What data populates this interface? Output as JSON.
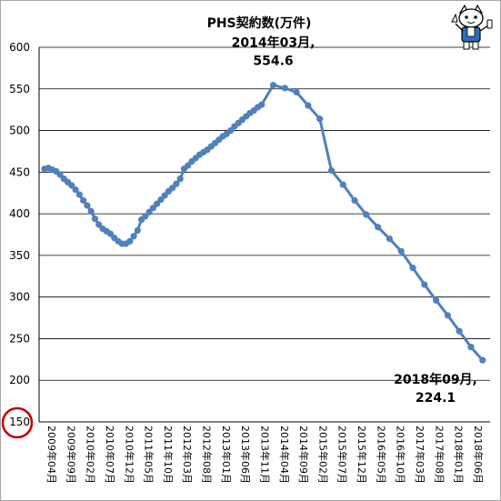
{
  "chart_data": {
    "type": "line",
    "title": "PHS契約数(万件)",
    "xlabel": "",
    "ylabel": "",
    "ylim": [
      150,
      600
    ],
    "ytick_values": [
      150,
      200,
      250,
      300,
      350,
      400,
      450,
      500,
      550,
      600
    ],
    "ytick_labels": [
      "150",
      "200",
      "250",
      "300",
      "350",
      "400",
      "450",
      "500",
      "550",
      "600"
    ],
    "grid": "horizontal",
    "legend": "none",
    "series_color": "#4f81bd",
    "highlight_color": "#c00000",
    "highlighted_tick": "150",
    "x_start": "2009-04",
    "x_labels": [
      {
        "month": "2009-04",
        "text": "2009年04月"
      },
      {
        "month": "2009-09",
        "text": "2009年09月"
      },
      {
        "month": "2010-02",
        "text": "2010年02月"
      },
      {
        "month": "2010-07",
        "text": "2010年07月"
      },
      {
        "month": "2010-12",
        "text": "2010年12月"
      },
      {
        "month": "2011-05",
        "text": "2011年05月"
      },
      {
        "month": "2011-10",
        "text": "2011年10月"
      },
      {
        "month": "2012-03",
        "text": "2012年03月"
      },
      {
        "month": "2012-08",
        "text": "2012年08月"
      },
      {
        "month": "2013-01",
        "text": "2013年01月"
      },
      {
        "month": "2013-06",
        "text": "2013年06月"
      },
      {
        "month": "2013-11",
        "text": "2013年11月"
      },
      {
        "month": "2014-04",
        "text": "2014年04月"
      },
      {
        "month": "2014-09",
        "text": "2014年09月"
      },
      {
        "month": "2015-02",
        "text": "2015年02月"
      },
      {
        "month": "2015-07",
        "text": "2015年07月"
      },
      {
        "month": "2015-12",
        "text": "2015年12月"
      },
      {
        "month": "2016-05",
        "text": "2016年05月"
      },
      {
        "month": "2016-10",
        "text": "2016年10月"
      },
      {
        "month": "2017-03",
        "text": "2017年03月"
      },
      {
        "month": "2017-08",
        "text": "2017年08月"
      },
      {
        "month": "2018-01",
        "text": "2018年01月"
      },
      {
        "month": "2018-06",
        "text": "2018年06月"
      }
    ],
    "series": [
      {
        "points": [
          {
            "x": "2009-04",
            "y": 454
          },
          {
            "x": "2009-05",
            "y": 455
          },
          {
            "x": "2009-06",
            "y": 453
          },
          {
            "x": "2009-07",
            "y": 451
          },
          {
            "x": "2009-08",
            "y": 447
          },
          {
            "x": "2009-09",
            "y": 442
          },
          {
            "x": "2009-10",
            "y": 438
          },
          {
            "x": "2009-11",
            "y": 434
          },
          {
            "x": "2009-12",
            "y": 429
          },
          {
            "x": "2010-01",
            "y": 423
          },
          {
            "x": "2010-02",
            "y": 416
          },
          {
            "x": "2010-03",
            "y": 410
          },
          {
            "x": "2010-04",
            "y": 403
          },
          {
            "x": "2010-05",
            "y": 394
          },
          {
            "x": "2010-06",
            "y": 387
          },
          {
            "x": "2010-07",
            "y": 382
          },
          {
            "x": "2010-08",
            "y": 379
          },
          {
            "x": "2010-09",
            "y": 376
          },
          {
            "x": "2010-10",
            "y": 371
          },
          {
            "x": "2010-11",
            "y": 367
          },
          {
            "x": "2010-12",
            "y": 364
          },
          {
            "x": "2011-01",
            "y": 364
          },
          {
            "x": "2011-02",
            "y": 367
          },
          {
            "x": "2011-03",
            "y": 373
          },
          {
            "x": "2011-04",
            "y": 380
          },
          {
            "x": "2011-05",
            "y": 393
          },
          {
            "x": "2011-06",
            "y": 397
          },
          {
            "x": "2011-07",
            "y": 402
          },
          {
            "x": "2011-08",
            "y": 407
          },
          {
            "x": "2011-09",
            "y": 412
          },
          {
            "x": "2011-10",
            "y": 417
          },
          {
            "x": "2011-11",
            "y": 422
          },
          {
            "x": "2011-12",
            "y": 427
          },
          {
            "x": "2012-01",
            "y": 431
          },
          {
            "x": "2012-02",
            "y": 436
          },
          {
            "x": "2012-03",
            "y": 442
          },
          {
            "x": "2012-04",
            "y": 454
          },
          {
            "x": "2012-05",
            "y": 458
          },
          {
            "x": "2012-06",
            "y": 463
          },
          {
            "x": "2012-07",
            "y": 467
          },
          {
            "x": "2012-08",
            "y": 471
          },
          {
            "x": "2012-09",
            "y": 474
          },
          {
            "x": "2012-10",
            "y": 477
          },
          {
            "x": "2012-11",
            "y": 481
          },
          {
            "x": "2012-12",
            "y": 485
          },
          {
            "x": "2013-01",
            "y": 489
          },
          {
            "x": "2013-02",
            "y": 493
          },
          {
            "x": "2013-03",
            "y": 496
          },
          {
            "x": "2013-04",
            "y": 500
          },
          {
            "x": "2013-05",
            "y": 505
          },
          {
            "x": "2013-06",
            "y": 509
          },
          {
            "x": "2013-07",
            "y": 513
          },
          {
            "x": "2013-08",
            "y": 517
          },
          {
            "x": "2013-09",
            "y": 521
          },
          {
            "x": "2013-10",
            "y": 524
          },
          {
            "x": "2013-11",
            "y": 528
          },
          {
            "x": "2013-12",
            "y": 531
          },
          {
            "x": "2014-03",
            "y": 554.6
          },
          {
            "x": "2014-06",
            "y": 551
          },
          {
            "x": "2014-09",
            "y": 546
          },
          {
            "x": "2014-12",
            "y": 530
          },
          {
            "x": "2015-03",
            "y": 514
          },
          {
            "x": "2015-06",
            "y": 452
          },
          {
            "x": "2015-09",
            "y": 435
          },
          {
            "x": "2015-12",
            "y": 416
          },
          {
            "x": "2016-03",
            "y": 399
          },
          {
            "x": "2016-06",
            "y": 384
          },
          {
            "x": "2016-09",
            "y": 370
          },
          {
            "x": "2016-12",
            "y": 355
          },
          {
            "x": "2017-03",
            "y": 335
          },
          {
            "x": "2017-06",
            "y": 315
          },
          {
            "x": "2017-09",
            "y": 296
          },
          {
            "x": "2017-12",
            "y": 278
          },
          {
            "x": "2018-03",
            "y": 259
          },
          {
            "x": "2018-06",
            "y": 240
          },
          {
            "x": "2018-09",
            "y": 224.1
          }
        ]
      }
    ],
    "annotations": [
      {
        "x": "2014-03",
        "y": 554.6,
        "lines": [
          "2014年03月,",
          "554.6"
        ]
      },
      {
        "x": "2018-09",
        "y": 224.1,
        "lines": [
          "2018年09月,",
          "224.1"
        ]
      }
    ]
  }
}
